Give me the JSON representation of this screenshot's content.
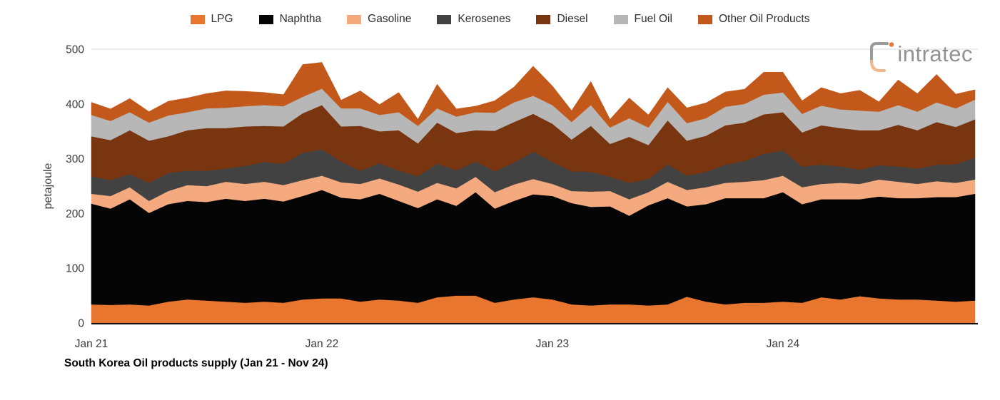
{
  "header": {
    "logo_text": "intratec"
  },
  "chart": {
    "title": "South Korea Oil products supply (Jan 21 - Nov 24)",
    "y_axis_label": "petajoule"
  },
  "chart_data": {
    "type": "area",
    "stacked": true,
    "title": "South Korea Oil products supply (Jan 21 - Nov 24)",
    "xlabel": "",
    "ylabel": "petajoule",
    "ylim": [
      0,
      500
    ],
    "y_ticks": [
      0,
      100,
      200,
      300,
      400,
      500
    ],
    "x_tick_indices": [
      0,
      12,
      24,
      36
    ],
    "x_tick_labels": [
      "Jan 21",
      "Jan 22",
      "Jan 23",
      "Jan 24"
    ],
    "grid": false,
    "legend_position": "top",
    "categories": [
      "Jan 21",
      "Feb 21",
      "Mar 21",
      "Apr 21",
      "May 21",
      "Jun 21",
      "Jul 21",
      "Aug 21",
      "Sep 21",
      "Oct 21",
      "Nov 21",
      "Dec 21",
      "Jan 22",
      "Feb 22",
      "Mar 22",
      "Apr 22",
      "May 22",
      "Jun 22",
      "Jul 22",
      "Aug 22",
      "Sep 22",
      "Oct 22",
      "Nov 22",
      "Dec 22",
      "Jan 23",
      "Feb 23",
      "Mar 23",
      "Apr 23",
      "May 23",
      "Jun 23",
      "Jul 23",
      "Aug 23",
      "Sep 23",
      "Oct 23",
      "Nov 23",
      "Dec 23",
      "Jan 24",
      "Feb 24",
      "Mar 24",
      "Apr 24",
      "May 24",
      "Jun 24",
      "Jul 24",
      "Aug 24",
      "Sep 24",
      "Oct 24",
      "Nov 24"
    ],
    "series": [
      {
        "name": "LPG",
        "color": "#E8762F",
        "values": [
          34,
          33,
          34,
          32,
          39,
          43,
          41,
          39,
          37,
          39,
          37,
          43,
          45,
          45,
          39,
          43,
          41,
          37,
          47,
          50,
          50,
          37,
          43,
          47,
          43,
          34,
          32,
          34,
          34,
          32,
          34,
          48,
          39,
          34,
          37,
          37,
          39,
          37,
          47,
          43,
          49,
          45,
          43,
          43,
          41,
          39,
          41
        ]
      },
      {
        "name": "Naphtha",
        "color": "#050505",
        "values": [
          184,
          176,
          192,
          169,
          178,
          180,
          180,
          188,
          186,
          188,
          185,
          189,
          198,
          184,
          187,
          193,
          182,
          173,
          179,
          164,
          189,
          172,
          180,
          188,
          189,
          185,
          180,
          179,
          162,
          183,
          194,
          165,
          178,
          194,
          191,
          191,
          200,
          180,
          179,
          183,
          177,
          186,
          185,
          185,
          189,
          191,
          195
        ]
      },
      {
        "name": "Gasoline",
        "color": "#F4A97E",
        "values": [
          18,
          23,
          22,
          22,
          24,
          29,
          29,
          31,
          31,
          31,
          30,
          29,
          26,
          28,
          28,
          28,
          30,
          30,
          30,
          32,
          28,
          30,
          30,
          28,
          22,
          22,
          28,
          28,
          30,
          24,
          30,
          30,
          31,
          28,
          30,
          33,
          30,
          31,
          28,
          30,
          28,
          31,
          30,
          26,
          29,
          26,
          26
        ]
      },
      {
        "name": "Kerosenes",
        "color": "#424242",
        "values": [
          32,
          29,
          24,
          33,
          33,
          26,
          28,
          24,
          33,
          36,
          39,
          50,
          48,
          38,
          24,
          28,
          25,
          28,
          35,
          33,
          28,
          38,
          40,
          50,
          40,
          36,
          36,
          26,
          30,
          24,
          32,
          26,
          28,
          33,
          38,
          48,
          46,
          38,
          35,
          30,
          26,
          26,
          28,
          28,
          30,
          34,
          40
        ]
      },
      {
        "name": "Diesel",
        "color": "#78350F",
        "values": [
          73,
          73,
          80,
          77,
          67,
          74,
          78,
          74,
          72,
          66,
          68,
          72,
          81,
          64,
          82,
          58,
          74,
          60,
          75,
          68,
          57,
          74,
          74,
          69,
          70,
          58,
          84,
          60,
          84,
          62,
          80,
          64,
          66,
          72,
          70,
          72,
          70,
          62,
          72,
          70,
          72,
          64,
          76,
          70,
          78,
          68,
          70
        ]
      },
      {
        "name": "Fuel Oil",
        "color": "#B7B7B7",
        "values": [
          39,
          35,
          33,
          33,
          38,
          33,
          36,
          37,
          37,
          38,
          37,
          30,
          30,
          33,
          32,
          30,
          33,
          32,
          26,
          30,
          33,
          33,
          36,
          33,
          34,
          32,
          38,
          30,
          34,
          32,
          34,
          32,
          32,
          34,
          34,
          36,
          36,
          34,
          36,
          34,
          36,
          34,
          36,
          34,
          36,
          34,
          36
        ]
      },
      {
        "name": "Other Oil Products",
        "color": "#C2591B",
        "values": [
          23,
          22,
          25,
          20,
          26,
          26,
          27,
          31,
          27,
          23,
          21,
          59,
          48,
          15,
          32,
          19,
          36,
          12,
          44,
          14,
          11,
          22,
          28,
          54,
          35,
          21,
          43,
          15,
          37,
          23,
          26,
          28,
          28,
          27,
          27,
          41,
          37,
          24,
          33,
          29,
          37,
          18,
          46,
          33,
          51,
          26,
          18
        ]
      }
    ],
    "axis_color": "#3d3d3d",
    "baseline_color": "#111111",
    "gridline_color": "#d8d8d8"
  }
}
